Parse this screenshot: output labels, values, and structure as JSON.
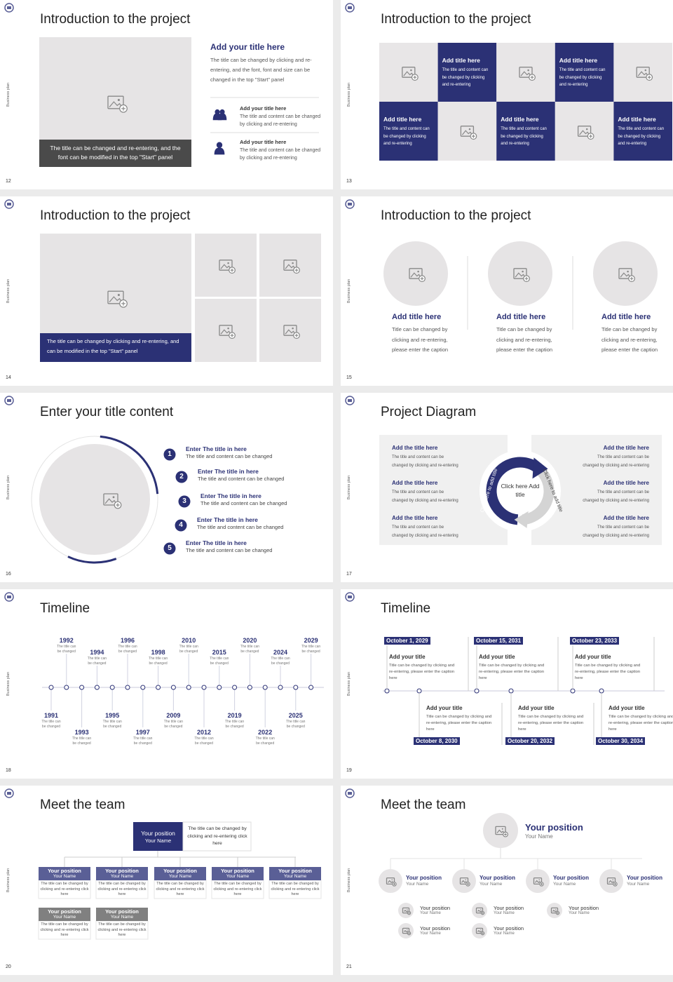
{
  "slides": [
    {
      "number": "12",
      "side": "Business plan",
      "title": "Introduction to the project",
      "caption": "The title can be changed and re-entering, and the font can be modified in the top \"Start\" panel",
      "main": {
        "title": "Add your title here",
        "text": "The title can be changed by clicking and re-entering, and the font, font and size can be changed in the top \"Start\" panel"
      },
      "items": [
        {
          "title": "Add your title here",
          "text": "The title and content can be changed by clicking and re-entering"
        },
        {
          "title": "Add your title here",
          "text": "The title and content can be changed by clicking and re-entering"
        }
      ]
    },
    {
      "number": "13",
      "side": "Business plan",
      "title": "Introduction to the project",
      "cells": [
        {
          "title": "Add title here",
          "text": "The title and content can be changed by clicking and re-entering"
        },
        {
          "title": "Add title here",
          "text": "The title and content can be changed by clicking and re-entering"
        },
        {
          "title": "Add title here",
          "text": "The title and content can be changed by clicking and re-entering"
        },
        {
          "title": "Add title here",
          "text": "The title and content can be changed by clicking and re-entering"
        },
        {
          "title": "Add title here",
          "text": "The title and content can be changed by clicking and re-entering"
        }
      ]
    },
    {
      "number": "14",
      "side": "Business plan",
      "title": "Introduction to the project",
      "caption": "The title can be changed by clicking and re-entering, and can be modified in the top \"Start\" panel"
    },
    {
      "number": "15",
      "side": "Business plan",
      "title": "Introduction to the project",
      "items": [
        {
          "title": "Add title here",
          "text": "Title can be changed by clicking and re-entering, please enter the caption"
        },
        {
          "title": "Add title here",
          "text": "Title can be changed by clicking and re-entering, please enter the caption"
        },
        {
          "title": "Add title here",
          "text": "Title can be changed by clicking and re-entering, please enter the caption"
        }
      ]
    },
    {
      "number": "16",
      "side": "Business plan",
      "title": "Enter your title content",
      "items": [
        {
          "num": "1",
          "title": "Enter The title in here",
          "text": "The title and content can be changed"
        },
        {
          "num": "2",
          "title": "Enter The title in here",
          "text": "The title and content can be changed"
        },
        {
          "num": "3",
          "title": "Enter The title in here",
          "text": "The title and content can be changed"
        },
        {
          "num": "4",
          "title": "Enter The title in here",
          "text": "The title and content can be changed"
        },
        {
          "num": "5",
          "title": "Enter The title in here",
          "text": "The title and content can be changed"
        }
      ]
    },
    {
      "number": "17",
      "side": "Business plan",
      "title": "Project Diagram",
      "center": "Click here Add title",
      "arc_left": "Click here to add title",
      "arc_right": "Click here to add title",
      "left": [
        {
          "title": "Add the title here",
          "text": "The title and content can be changed by clicking and re-entering"
        },
        {
          "title": "Add the title here",
          "text": "The title and content can be changed by clicking and re-entering"
        },
        {
          "title": "Add the title here",
          "text": "The title and content can be changed by clicking and re-entering"
        }
      ],
      "right": [
        {
          "title": "Add the title here",
          "text": "The title and content can be changed by clicking and re-entering"
        },
        {
          "title": "Add the title here",
          "text": "The title and content can be changed by clicking and re-entering"
        },
        {
          "title": "Add the title here",
          "text": "The title and content can be changed by clicking and re-entering"
        }
      ]
    },
    {
      "number": "18",
      "side": "Business plan",
      "title": "Timeline",
      "events": [
        {
          "year": "1991",
          "text": "The title can be changed"
        },
        {
          "year": "1992",
          "text": "The title can be changed"
        },
        {
          "year": "1993",
          "text": "The title can be changed"
        },
        {
          "year": "1994",
          "text": "The title can be changed"
        },
        {
          "year": "1995",
          "text": "The title can be changed"
        },
        {
          "year": "1996",
          "text": "The title can be changed"
        },
        {
          "year": "1997",
          "text": "The title can be changed"
        },
        {
          "year": "1998",
          "text": "The title can be changed"
        },
        {
          "year": "2009",
          "text": "The title can be changed"
        },
        {
          "year": "2010",
          "text": "The title can be changed"
        },
        {
          "year": "2012",
          "text": "The title can be changed"
        },
        {
          "year": "2015",
          "text": "The title can be changed"
        },
        {
          "year": "2019",
          "text": "The title can be changed"
        },
        {
          "year": "2020",
          "text": "The title can be changed"
        },
        {
          "year": "2022",
          "text": "The title can be changed"
        },
        {
          "year": "2024",
          "text": "The title can be changed"
        },
        {
          "year": "2025",
          "text": "The title can be changed"
        },
        {
          "year": "2029",
          "text": "The title can be changed"
        }
      ]
    },
    {
      "number": "19",
      "side": "Business plan",
      "title": "Timeline",
      "events": [
        {
          "date": "October 1, 2029",
          "title": "Add your title",
          "text": "Title can be changed by clicking and re-entering, please enter the caption here"
        },
        {
          "date": "October 8, 2030",
          "title": "Add your title",
          "text": "Title can be changed by clicking and re-entering, please enter the caption here"
        },
        {
          "date": "October 15, 2031",
          "title": "Add your title",
          "text": "Title can be changed by clicking and re-entering, please enter the caption here"
        },
        {
          "date": "October 20, 2032",
          "title": "Add your title",
          "text": "Title can be changed by clicking and re-entering, please enter the caption here"
        },
        {
          "date": "October 23, 2033",
          "title": "Add your title",
          "text": "Title can be changed by clicking and re-entering, please enter the caption here"
        },
        {
          "date": "October 30, 2034",
          "title": "Add your title",
          "text": "Title can be changed by clicking and re-entering, please enter the caption here"
        }
      ]
    },
    {
      "number": "20",
      "side": "Business plan",
      "title": "Meet the team",
      "head": {
        "position": "Your position",
        "name": "Your Name",
        "text": "The title can be changed by clicking and re-entering click here"
      },
      "members": [
        {
          "position": "Your position",
          "name": "Your Name",
          "text": "The title can be changed by clicking and re-entering click here"
        },
        {
          "position": "Your position",
          "name": "Your Name",
          "text": "The title can be changed by clicking and re-entering click here"
        },
        {
          "position": "Your position",
          "name": "Your Name",
          "text": "The title can be changed by clicking and re-entering click here"
        },
        {
          "position": "Your position",
          "name": "Your Name",
          "text": "The title can be changed by clicking and re-entering click here"
        },
        {
          "position": "Your position",
          "name": "Your Name",
          "text": "The title can be changed by clicking and re-entering click here"
        },
        {
          "position": "Your position",
          "name": "Your Name",
          "text": "The title can be changed by clicking and re-entering click here"
        },
        {
          "position": "Your position",
          "name": "Your Name",
          "text": "The title can be changed by clicking and re-entering click here"
        }
      ]
    },
    {
      "number": "21",
      "side": "Business plan",
      "title": "Meet the team",
      "head": {
        "position": "Your position",
        "name": "Your Name"
      },
      "level1": [
        {
          "position": "Your position",
          "name": "Your Name"
        },
        {
          "position": "Your position",
          "name": "Your Name"
        },
        {
          "position": "Your position",
          "name": "Your Name"
        },
        {
          "position": "Your position",
          "name": "Your Name"
        }
      ],
      "level2": [
        {
          "position": "Your position",
          "name": "Your Name"
        },
        {
          "position": "Your position",
          "name": "Your Name"
        },
        {
          "position": "Your position",
          "name": "Your Name"
        },
        {
          "position": "Your position",
          "name": "Your Name"
        },
        {
          "position": "Your position",
          "name": "Your Name"
        }
      ]
    }
  ]
}
